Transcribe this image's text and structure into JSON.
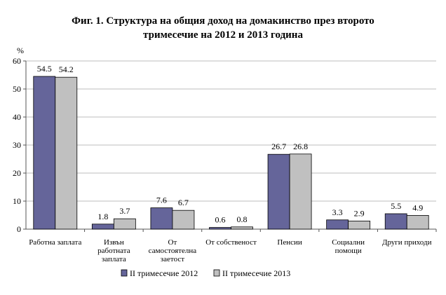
{
  "chart_data": {
    "type": "bar",
    "title_line1": "Фиг. 1. Структура на общия доход на домакинство през второто",
    "title_line2": "тримесечие на 2012 и 2013 година",
    "ylabel": "%",
    "ylim": [
      0,
      60
    ],
    "yticks": [
      "0",
      "10",
      "20",
      "30",
      "40",
      "50",
      "60"
    ],
    "grid": true,
    "legend_position": "bottom",
    "categories": [
      [
        "Работна заплата"
      ],
      [
        "Извън",
        "работната",
        "заплата"
      ],
      [
        "От",
        "самостоятелна",
        "заетост"
      ],
      [
        "От собственост"
      ],
      [
        "Пенсии"
      ],
      [
        "Социални",
        "помощи"
      ],
      [
        "Други приходи"
      ]
    ],
    "series": [
      {
        "name": "II тримесечие 2012",
        "color": "#65659a",
        "values": [
          54.5,
          1.8,
          7.6,
          0.6,
          26.7,
          3.3,
          5.5
        ],
        "labels": [
          "54.5",
          "1.8",
          "7.6",
          "0.6",
          "26.7",
          "3.3",
          "5.5"
        ]
      },
      {
        "name": "II тримесечие 2013",
        "color": "#c0c0c0",
        "values": [
          54.2,
          3.7,
          6.7,
          0.8,
          26.8,
          2.9,
          4.9
        ],
        "labels": [
          "54.2",
          "3.7",
          "6.7",
          "0.8",
          "26.8",
          "2.9",
          "4.9"
        ]
      }
    ]
  }
}
